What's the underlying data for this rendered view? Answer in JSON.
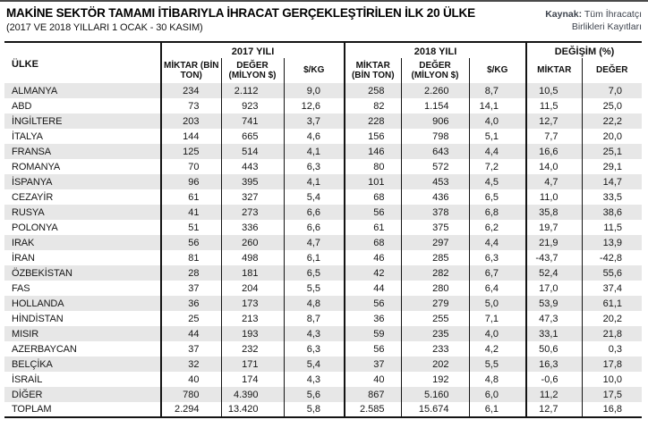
{
  "header": {
    "title": "MAKİNE SEKTÖR TAMAMI İTİBARIYLA İHRACAT GERÇEKLEŞTİRİLEN İLK 20 ÜLKE",
    "subtitle": "(2017 VE 2018 YILLARI 1 OCAK - 30 KASIM)",
    "source_label": "Kaynak:",
    "source_line1": "Tüm İhracatçı",
    "source_line2": "Birlikleri Kayıtları"
  },
  "table": {
    "col_country": "ÜLKE",
    "groups": [
      {
        "label": "2017 YILI",
        "cols": [
          "MİKTAR (BİN TON)",
          "DEĞER (MİLYON $)",
          "$/KG"
        ]
      },
      {
        "label": "2018 YILI",
        "cols": [
          "MİKTAR (BİN TON)",
          "DEĞER (MİLYON $)",
          "$/KG"
        ]
      },
      {
        "label": "DEĞİŞİM (%)",
        "cols": [
          "MİKTAR",
          "DEĞER"
        ]
      }
    ]
  },
  "colors": {
    "stripe": "#e7e7e7",
    "border": "#141414",
    "rule": "#4a4a4a",
    "source_text": "#3d434d",
    "title_text": "#000000"
  },
  "chart_data": {
    "type": "table",
    "title": "MAKİNE SEKTÖR TAMAMI İTİBARIYLA İHRACAT GERÇEKLEŞTİRİLEN İLK 20 ÜLKE",
    "subtitle": "(2017 VE 2018 YILLARI 1 OCAK - 30 KASIM)",
    "source": "Kaynak: Tüm İhracatçı Birlikleri Kayıtları",
    "column_groups": [
      "",
      "2017 YILI",
      "2017 YILI",
      "2017 YILI",
      "2018 YILI",
      "2018 YILI",
      "2018 YILI",
      "DEĞİŞİM (%)",
      "DEĞİŞİM (%)"
    ],
    "columns": [
      "ÜLKE",
      "MİKTAR (BİN TON)",
      "DEĞER (MİLYON $)",
      "$/KG",
      "MİKTAR (BİN TON)",
      "DEĞER (MİLYON $)",
      "$/KG",
      "MİKTAR",
      "DEĞER"
    ],
    "rows": [
      [
        "ALMANYA",
        "234",
        "2.112",
        "9,0",
        "258",
        "2.260",
        "8,7",
        "10,5",
        "7,0"
      ],
      [
        "ABD",
        "73",
        "923",
        "12,6",
        "82",
        "1.154",
        "14,1",
        "11,5",
        "25,0"
      ],
      [
        "İNGİLTERE",
        "203",
        "741",
        "3,7",
        "228",
        "906",
        "4,0",
        "12,7",
        "22,2"
      ],
      [
        "İTALYA",
        "144",
        "665",
        "4,6",
        "156",
        "798",
        "5,1",
        "7,7",
        "20,0"
      ],
      [
        "FRANSA",
        "125",
        "514",
        "4,1",
        "146",
        "643",
        "4,4",
        "16,6",
        "25,1"
      ],
      [
        "ROMANYA",
        "70",
        "443",
        "6,3",
        "80",
        "572",
        "7,2",
        "14,0",
        "29,1"
      ],
      [
        "İSPANYA",
        "96",
        "395",
        "4,1",
        "101",
        "453",
        "4,5",
        "4,7",
        "14,7"
      ],
      [
        "CEZAYİR",
        "61",
        "327",
        "5,4",
        "68",
        "436",
        "6,5",
        "11,0",
        "33,5"
      ],
      [
        "RUSYA",
        "41",
        "273",
        "6,6",
        "56",
        "378",
        "6,8",
        "35,8",
        "38,6"
      ],
      [
        "POLONYA",
        "51",
        "336",
        "6,6",
        "61",
        "375",
        "6,2",
        "19,7",
        "11,5"
      ],
      [
        "IRAK",
        "56",
        "260",
        "4,7",
        "68",
        "297",
        "4,4",
        "21,9",
        "13,9"
      ],
      [
        "İRAN",
        "81",
        "498",
        "6,1",
        "46",
        "285",
        "6,3",
        "-43,7",
        "-42,8"
      ],
      [
        "ÖZBEKİSTAN",
        "28",
        "181",
        "6,5",
        "42",
        "282",
        "6,7",
        "52,4",
        "55,6"
      ],
      [
        "FAS",
        "37",
        "204",
        "5,5",
        "44",
        "280",
        "6,4",
        "17,0",
        "37,4"
      ],
      [
        "HOLLANDA",
        "36",
        "173",
        "4,8",
        "56",
        "279",
        "5,0",
        "53,9",
        "61,1"
      ],
      [
        "HİNDİSTAN",
        "25",
        "213",
        "8,7",
        "36",
        "255",
        "7,1",
        "47,3",
        "20,2"
      ],
      [
        "MISIR",
        "44",
        "193",
        "4,3",
        "59",
        "235",
        "4,0",
        "33,1",
        "21,8"
      ],
      [
        "AZERBAYCAN",
        "37",
        "232",
        "6,3",
        "56",
        "233",
        "4,2",
        "50,6",
        "0,3"
      ],
      [
        "BELÇİKA",
        "32",
        "171",
        "5,4",
        "37",
        "202",
        "5,5",
        "16,3",
        "17,8"
      ],
      [
        "İSRAİL",
        "40",
        "174",
        "4,3",
        "40",
        "192",
        "4,8",
        "-0,6",
        "10,0"
      ],
      [
        "DİĞER",
        "780",
        "4.390",
        "5,6",
        "867",
        "5.160",
        "6,0",
        "11,2",
        "17,5"
      ],
      [
        "TOPLAM",
        "2.294",
        "13.420",
        "5,8",
        "2.585",
        "15.674",
        "6,1",
        "12,7",
        "16,8"
      ]
    ]
  }
}
